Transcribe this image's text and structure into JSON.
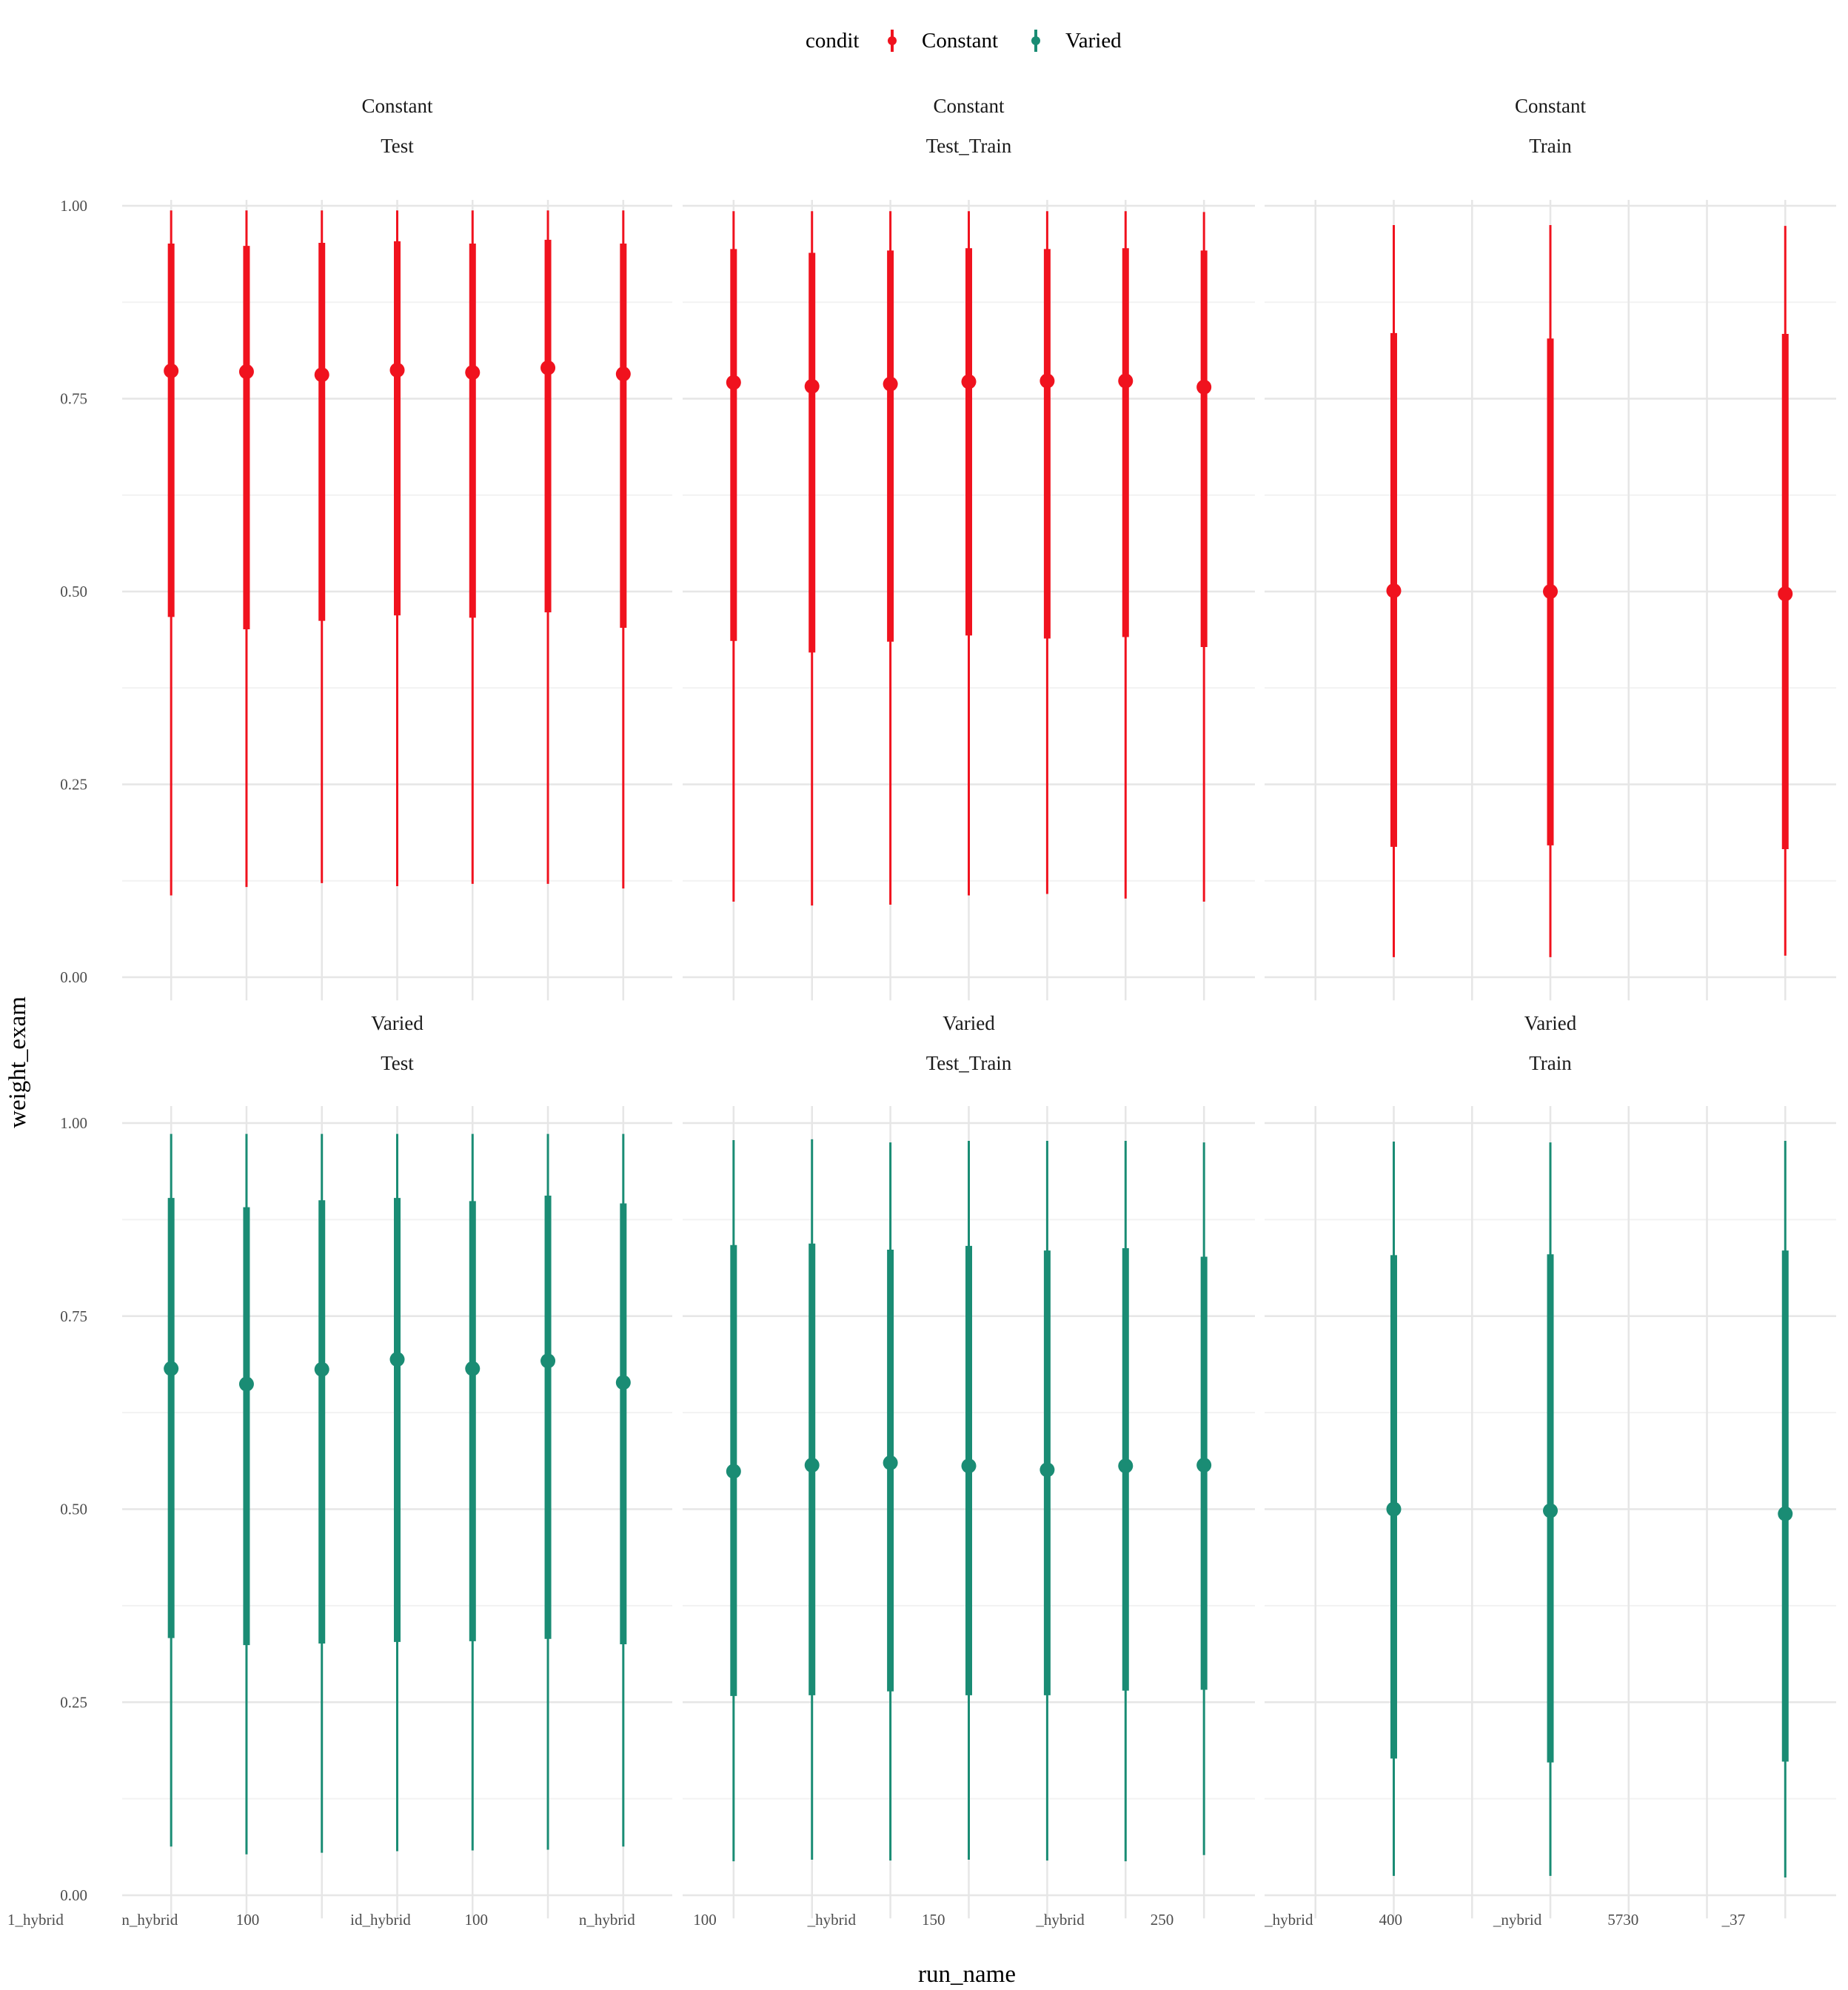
{
  "legend": {
    "title": "condit",
    "entries": [
      {
        "label": "Constant",
        "color": "#F0121E"
      },
      {
        "label": "Varied",
        "color": "#1A8C74"
      }
    ]
  },
  "chart_data": {
    "type": "pointrange",
    "xlabel": "run_name",
    "ylabel": "weight_exam",
    "ylim": [
      0,
      1
    ],
    "yticks": [
      "0.00",
      "0.25",
      "0.50",
      "0.75",
      "1.00"
    ],
    "grid": true,
    "legend_position": "top",
    "x_tick_labels_visible": [
      "1_hybrid",
      "n_hybrid",
      "100",
      "id_hybrid",
      "100",
      "n_hybrid",
      "100",
      "_hybrid",
      "150",
      "_hybrid",
      "250",
      "_hybrid",
      "400",
      "_nybrid",
      "5730",
      "_37"
    ],
    "panels": [
      {
        "row": "Constant",
        "col": "Test",
        "condit": "Constant",
        "x": [
          1,
          2,
          3,
          4,
          5,
          6,
          7
        ],
        "mean": [
          0.786,
          0.785,
          0.781,
          0.787,
          0.784,
          0.79,
          0.782
        ],
        "inner_low": [
          0.467,
          0.451,
          0.462,
          0.469,
          0.466,
          0.473,
          0.453
        ],
        "inner_high": [
          0.951,
          0.948,
          0.952,
          0.954,
          0.951,
          0.956,
          0.951
        ],
        "outer_low": [
          0.106,
          0.117,
          0.122,
          0.118,
          0.121,
          0.121,
          0.115
        ],
        "outer_high": [
          0.994,
          0.994,
          0.994,
          0.994,
          0.994,
          0.994,
          0.994
        ]
      },
      {
        "row": "Constant",
        "col": "Test_Train",
        "condit": "Constant",
        "x": [
          1,
          2,
          3,
          4,
          5,
          6,
          7
        ],
        "mean": [
          0.771,
          0.766,
          0.769,
          0.772,
          0.773,
          0.773,
          0.765
        ],
        "inner_low": [
          0.436,
          0.421,
          0.435,
          0.443,
          0.439,
          0.441,
          0.428
        ],
        "inner_high": [
          0.944,
          0.939,
          0.942,
          0.945,
          0.944,
          0.945,
          0.942
        ],
        "outer_low": [
          0.098,
          0.093,
          0.094,
          0.106,
          0.108,
          0.102,
          0.098
        ],
        "outer_high": [
          0.993,
          0.993,
          0.993,
          0.993,
          0.993,
          0.993,
          0.992
        ]
      },
      {
        "row": "Constant",
        "col": "Train",
        "condit": "Constant",
        "x": [
          2,
          4,
          7
        ],
        "mean": [
          0.501,
          0.5,
          0.497
        ],
        "inner_low": [
          0.169,
          0.171,
          0.166
        ],
        "inner_high": [
          0.835,
          0.828,
          0.834
        ],
        "outer_low": [
          0.026,
          0.026,
          0.028
        ],
        "outer_high": [
          0.975,
          0.975,
          0.974
        ]
      },
      {
        "row": "Varied",
        "col": "Test",
        "condit": "Varied",
        "x": [
          1,
          2,
          3,
          4,
          5,
          6,
          7
        ],
        "mean": [
          0.682,
          0.662,
          0.681,
          0.694,
          0.682,
          0.692,
          0.664
        ],
        "inner_low": [
          0.333,
          0.324,
          0.326,
          0.328,
          0.329,
          0.332,
          0.325
        ],
        "inner_high": [
          0.903,
          0.891,
          0.9,
          0.903,
          0.899,
          0.906,
          0.896
        ],
        "outer_low": [
          0.063,
          0.053,
          0.055,
          0.057,
          0.058,
          0.059,
          0.063
        ],
        "outer_high": [
          0.986,
          0.986,
          0.986,
          0.986,
          0.986,
          0.986,
          0.986
        ]
      },
      {
        "row": "Varied",
        "col": "Test_Train",
        "condit": "Varied",
        "x": [
          1,
          2,
          3,
          4,
          5,
          6,
          7
        ],
        "mean": [
          0.549,
          0.557,
          0.56,
          0.556,
          0.551,
          0.556,
          0.557
        ],
        "inner_low": [
          0.258,
          0.259,
          0.264,
          0.259,
          0.259,
          0.265,
          0.266
        ],
        "inner_high": [
          0.842,
          0.844,
          0.836,
          0.841,
          0.835,
          0.838,
          0.827
        ],
        "outer_low": [
          0.044,
          0.046,
          0.045,
          0.046,
          0.045,
          0.044,
          0.052
        ],
        "outer_high": [
          0.978,
          0.979,
          0.975,
          0.977,
          0.977,
          0.977,
          0.975
        ]
      },
      {
        "row": "Varied",
        "col": "Train",
        "condit": "Varied",
        "x": [
          2,
          4,
          7
        ],
        "mean": [
          0.5,
          0.498,
          0.494
        ],
        "inner_low": [
          0.177,
          0.172,
          0.173
        ],
        "inner_high": [
          0.829,
          0.83,
          0.835
        ],
        "outer_low": [
          0.025,
          0.025,
          0.023
        ],
        "outer_high": [
          0.976,
          0.975,
          0.977
        ]
      }
    ]
  }
}
